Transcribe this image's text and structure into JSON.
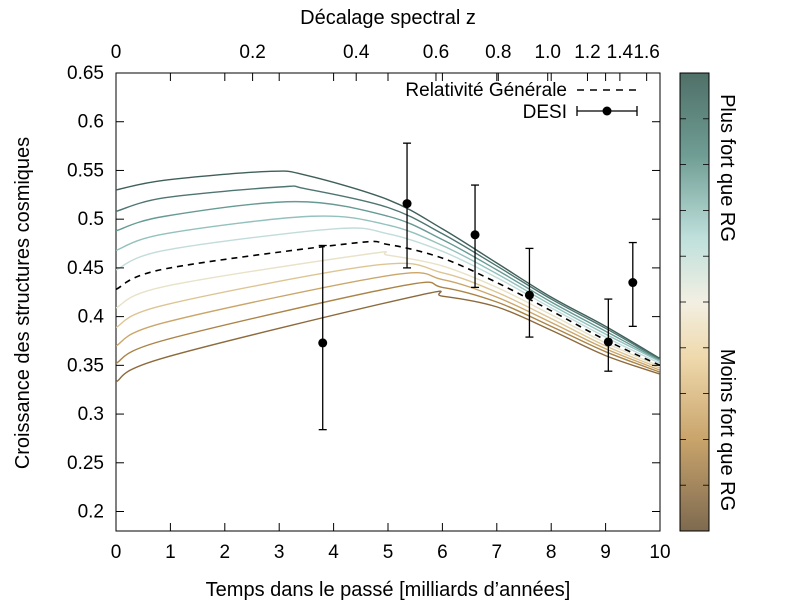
{
  "chart_data": {
    "type": "line",
    "xlabel": "Temps dans le passé [milliards d’années]",
    "x2label": "Décalage spectral z",
    "ylabel": "Croissance des structures cosmiques",
    "xlim": [
      0,
      10
    ],
    "ylim": [
      0.18,
      0.65
    ],
    "x_ticks": [
      "0",
      "1",
      "2",
      "3",
      "4",
      "5",
      "6",
      "7",
      "8",
      "9",
      "10"
    ],
    "x2_ticks": [
      "0",
      "0.2",
      "0.4",
      "0.6",
      "0.8",
      "1.0",
      "1.2",
      "1.4",
      "1.6"
    ],
    "y_ticks": [
      "0.2",
      "0.25",
      "0.3",
      "0.35",
      "0.4",
      "0.45",
      "0.5",
      "0.55",
      "0.6",
      "0.65"
    ],
    "grid": false,
    "legend_position": "top-right",
    "legend": [
      {
        "label": "Relativité Générale",
        "style": "dashed"
      },
      {
        "label": "DESI",
        "style": "points-errorbars"
      }
    ],
    "colorbar": {
      "top_label": "Plus fort que RG",
      "bottom_label": "Moins fort que RG",
      "top_color": "#4f7067",
      "bottom_color": "#7e6a50"
    },
    "series": [
      {
        "color": "#3f5f5a",
        "values": [
          [
            0,
            0.53
          ],
          [
            0.9,
            0.54
          ],
          [
            2.8,
            0.549
          ],
          [
            3.5,
            0.545
          ],
          [
            5,
            0.52
          ],
          [
            6,
            0.49
          ],
          [
            7,
            0.455
          ],
          [
            8,
            0.42
          ],
          [
            9,
            0.39
          ],
          [
            10,
            0.357
          ]
        ]
      },
      {
        "color": "#4e7572",
        "values": [
          [
            0,
            0.508
          ],
          [
            0.9,
            0.522
          ],
          [
            3,
            0.533
          ],
          [
            3.5,
            0.531
          ],
          [
            5,
            0.512
          ],
          [
            6,
            0.485
          ],
          [
            7,
            0.452
          ],
          [
            8,
            0.418
          ],
          [
            9,
            0.388
          ],
          [
            10,
            0.356
          ]
        ]
      },
      {
        "color": "#679a94",
        "values": [
          [
            0,
            0.488
          ],
          [
            0.9,
            0.503
          ],
          [
            3.3,
            0.518
          ],
          [
            5,
            0.503
          ],
          [
            6,
            0.479
          ],
          [
            7,
            0.448
          ],
          [
            8,
            0.415
          ],
          [
            9,
            0.385
          ],
          [
            10,
            0.355
          ]
        ]
      },
      {
        "color": "#93c1bd",
        "values": [
          [
            0,
            0.468
          ],
          [
            0.9,
            0.485
          ],
          [
            3.6,
            0.503
          ],
          [
            5,
            0.494
          ],
          [
            6,
            0.473
          ],
          [
            7,
            0.444
          ],
          [
            8,
            0.412
          ],
          [
            9,
            0.382
          ],
          [
            10,
            0.354
          ]
        ]
      },
      {
        "color": "#c1dcda",
        "values": [
          [
            0,
            0.448
          ],
          [
            0.9,
            0.468
          ],
          [
            4,
            0.49
          ],
          [
            5,
            0.485
          ],
          [
            6,
            0.467
          ],
          [
            7,
            0.44
          ],
          [
            8,
            0.409
          ],
          [
            9,
            0.379
          ],
          [
            10,
            0.352
          ]
        ]
      },
      {
        "color": "#e8e2c7",
        "values": [
          [
            0,
            0.409
          ],
          [
            0.9,
            0.431
          ],
          [
            4.6,
            0.464
          ],
          [
            5,
            0.463
          ],
          [
            6,
            0.452
          ],
          [
            7,
            0.43
          ],
          [
            8,
            0.402
          ],
          [
            9,
            0.373
          ],
          [
            10,
            0.349
          ]
        ]
      },
      {
        "color": "#ddc593",
        "values": [
          [
            0,
            0.389
          ],
          [
            0.9,
            0.412
          ],
          [
            4.8,
            0.453
          ],
          [
            6,
            0.445
          ],
          [
            7,
            0.425
          ],
          [
            8,
            0.398
          ],
          [
            9,
            0.37
          ],
          [
            10,
            0.347
          ]
        ]
      },
      {
        "color": "#cba66a",
        "values": [
          [
            0,
            0.37
          ],
          [
            0.9,
            0.394
          ],
          [
            5,
            0.442
          ],
          [
            6,
            0.438
          ],
          [
            7,
            0.42
          ],
          [
            8,
            0.394
          ],
          [
            9,
            0.367
          ],
          [
            10,
            0.345
          ]
        ]
      },
      {
        "color": "#ab8447",
        "values": [
          [
            0,
            0.352
          ],
          [
            0.9,
            0.376
          ],
          [
            5.2,
            0.431
          ],
          [
            6,
            0.43
          ],
          [
            7,
            0.415
          ],
          [
            8,
            0.39
          ],
          [
            9,
            0.364
          ],
          [
            10,
            0.343
          ]
        ]
      },
      {
        "color": "#8c6a3d",
        "values": [
          [
            0,
            0.333
          ],
          [
            0.9,
            0.358
          ],
          [
            5.5,
            0.421
          ],
          [
            6,
            0.421
          ],
          [
            7,
            0.41
          ],
          [
            8,
            0.386
          ],
          [
            9,
            0.36
          ],
          [
            10,
            0.341
          ]
        ]
      }
    ],
    "gr_curve": {
      "name": "Relativité Générale",
      "style": "dashed",
      "values": [
        [
          0,
          0.428
        ],
        [
          0.9,
          0.449
        ],
        [
          4.3,
          0.475
        ],
        [
          5,
          0.474
        ],
        [
          6,
          0.46
        ],
        [
          7,
          0.435
        ],
        [
          8,
          0.406
        ],
        [
          9,
          0.376
        ],
        [
          10,
          0.35
        ]
      ]
    },
    "desi": {
      "name": "DESI",
      "points": [
        {
          "x": 3.8,
          "y": 0.373,
          "ylow": 0.284,
          "yhigh": 0.473
        },
        {
          "x": 5.35,
          "y": 0.516,
          "ylow": 0.45,
          "yhigh": 0.578
        },
        {
          "x": 6.6,
          "y": 0.484,
          "ylow": 0.43,
          "yhigh": 0.535
        },
        {
          "x": 7.6,
          "y": 0.422,
          "ylow": 0.379,
          "yhigh": 0.47
        },
        {
          "x": 9.05,
          "y": 0.374,
          "ylow": 0.344,
          "yhigh": 0.418
        },
        {
          "x": 9.5,
          "y": 0.435,
          "ylow": 0.39,
          "yhigh": 0.476
        }
      ]
    }
  }
}
